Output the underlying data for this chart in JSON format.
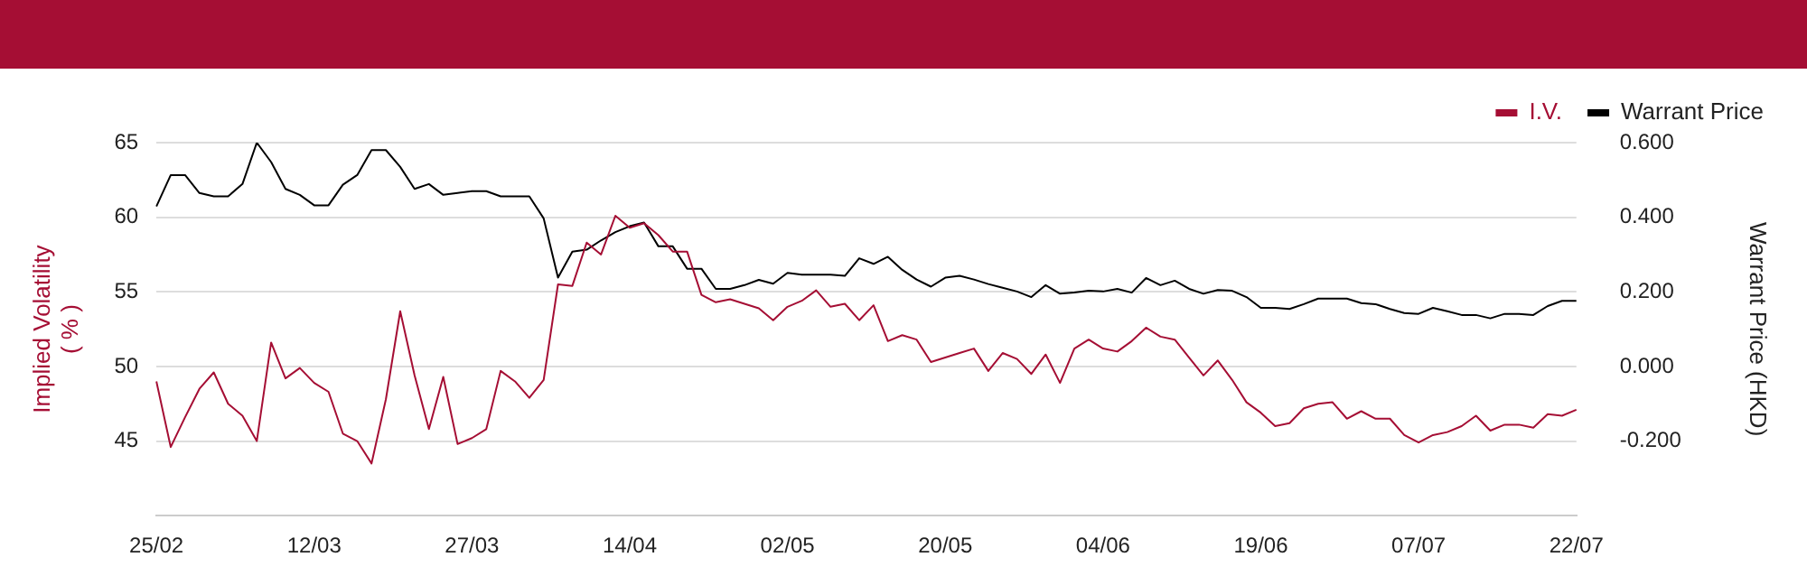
{
  "chart_data": {
    "type": "line",
    "ylabel": "Implied Volatility\n( % )",
    "y2label": "Warrant Price (HKD)",
    "categories": [
      "25/02",
      null,
      null,
      null,
      null,
      null,
      null,
      null,
      null,
      null,
      null,
      "12/03",
      null,
      null,
      null,
      null,
      null,
      null,
      null,
      null,
      null,
      null,
      "27/03",
      null,
      null,
      null,
      null,
      null,
      null,
      null,
      null,
      null,
      null,
      "14/04",
      null,
      null,
      null,
      null,
      null,
      null,
      null,
      null,
      null,
      null,
      "02/05",
      null,
      null,
      null,
      null,
      null,
      null,
      null,
      null,
      null,
      null,
      "20/05",
      null,
      null,
      null,
      null,
      null,
      null,
      null,
      null,
      null,
      null,
      "04/06",
      null,
      null,
      null,
      null,
      null,
      null,
      null,
      null,
      null,
      null,
      "19/06",
      null,
      null,
      null,
      null,
      null,
      null,
      null,
      null,
      null,
      null,
      "07/07",
      null,
      null,
      null,
      null,
      null,
      null,
      null,
      null,
      null,
      null,
      "22/07"
    ],
    "series": [
      {
        "name": "I.V.",
        "color": "#a50e34",
        "values": [
          49.0,
          44.6,
          46.6,
          48.5,
          49.6,
          47.5,
          46.7,
          45.0,
          51.6,
          49.2,
          49.9,
          48.9,
          48.3,
          45.5,
          45.0,
          43.5,
          47.8,
          53.7,
          49.4,
          45.8,
          49.3,
          44.8,
          45.2,
          45.8,
          49.7,
          49.0,
          47.9,
          49.1,
          55.5,
          55.4,
          58.3,
          57.5,
          60.1,
          59.3,
          59.6,
          58.8,
          57.7,
          57.7,
          54.8,
          54.3,
          54.5,
          54.2,
          53.9,
          53.1,
          54.0,
          54.4,
          55.1,
          54.0,
          54.2,
          53.1,
          54.1,
          51.7,
          52.1,
          51.8,
          50.3,
          50.6,
          50.9,
          51.2,
          49.7,
          50.9,
          50.5,
          49.5,
          50.8,
          48.9,
          51.2,
          51.8,
          51.2,
          51.0,
          51.7,
          52.6,
          52.0,
          51.8,
          50.6,
          49.4,
          50.4,
          49.1,
          47.6,
          46.9,
          46.0,
          46.2,
          47.2,
          47.5,
          47.6,
          46.5,
          47.0,
          46.5,
          46.5,
          45.4,
          44.9,
          45.4,
          45.6,
          46.0,
          46.7,
          45.7,
          46.1,
          46.1,
          45.9,
          46.8,
          46.7,
          47.1
        ]
      },
      {
        "name": "Warrant Price",
        "color": "#000000",
        "axis": "y2",
        "values": [
          0.429,
          0.513,
          0.513,
          0.465,
          0.456,
          0.456,
          0.489,
          0.6,
          0.548,
          0.476,
          0.46,
          0.432,
          0.432,
          0.487,
          0.513,
          0.58,
          0.58,
          0.535,
          0.476,
          0.489,
          0.46,
          0.465,
          0.47,
          0.47,
          0.456,
          0.456,
          0.456,
          0.397,
          0.238,
          0.308,
          0.313,
          0.338,
          0.36,
          0.376,
          0.386,
          0.322,
          0.322,
          0.262,
          0.262,
          0.208,
          0.208,
          0.218,
          0.232,
          0.222,
          0.251,
          0.246,
          0.246,
          0.246,
          0.243,
          0.29,
          0.275,
          0.294,
          0.259,
          0.233,
          0.214,
          0.238,
          0.243,
          0.233,
          0.221,
          0.211,
          0.201,
          0.186,
          0.218,
          0.195,
          0.198,
          0.203,
          0.201,
          0.208,
          0.198,
          0.237,
          0.218,
          0.23,
          0.208,
          0.195,
          0.205,
          0.203,
          0.186,
          0.157,
          0.157,
          0.154,
          0.167,
          0.182,
          0.182,
          0.182,
          0.17,
          0.167,
          0.154,
          0.143,
          0.141,
          0.157,
          0.148,
          0.138,
          0.138,
          0.129,
          0.141,
          0.141,
          0.138,
          0.162,
          0.176,
          0.176
        ]
      }
    ],
    "ylim": [
      40,
      65
    ],
    "yticks": [
      45,
      50,
      55,
      60,
      65
    ],
    "y2lim": [
      -0.4,
      0.6
    ],
    "y2ticks": [
      {
        "value": -0.2,
        "label": "-0.200"
      },
      {
        "value": 0,
        "label": "0.000"
      },
      {
        "value": 0.2,
        "label": "0.200"
      },
      {
        "value": 0.4,
        "label": "0.400"
      },
      {
        "value": 0.6,
        "label": "0.600"
      }
    ],
    "grid": "y",
    "legend": "top right",
    "marker": "none",
    "line_style": "solid"
  }
}
